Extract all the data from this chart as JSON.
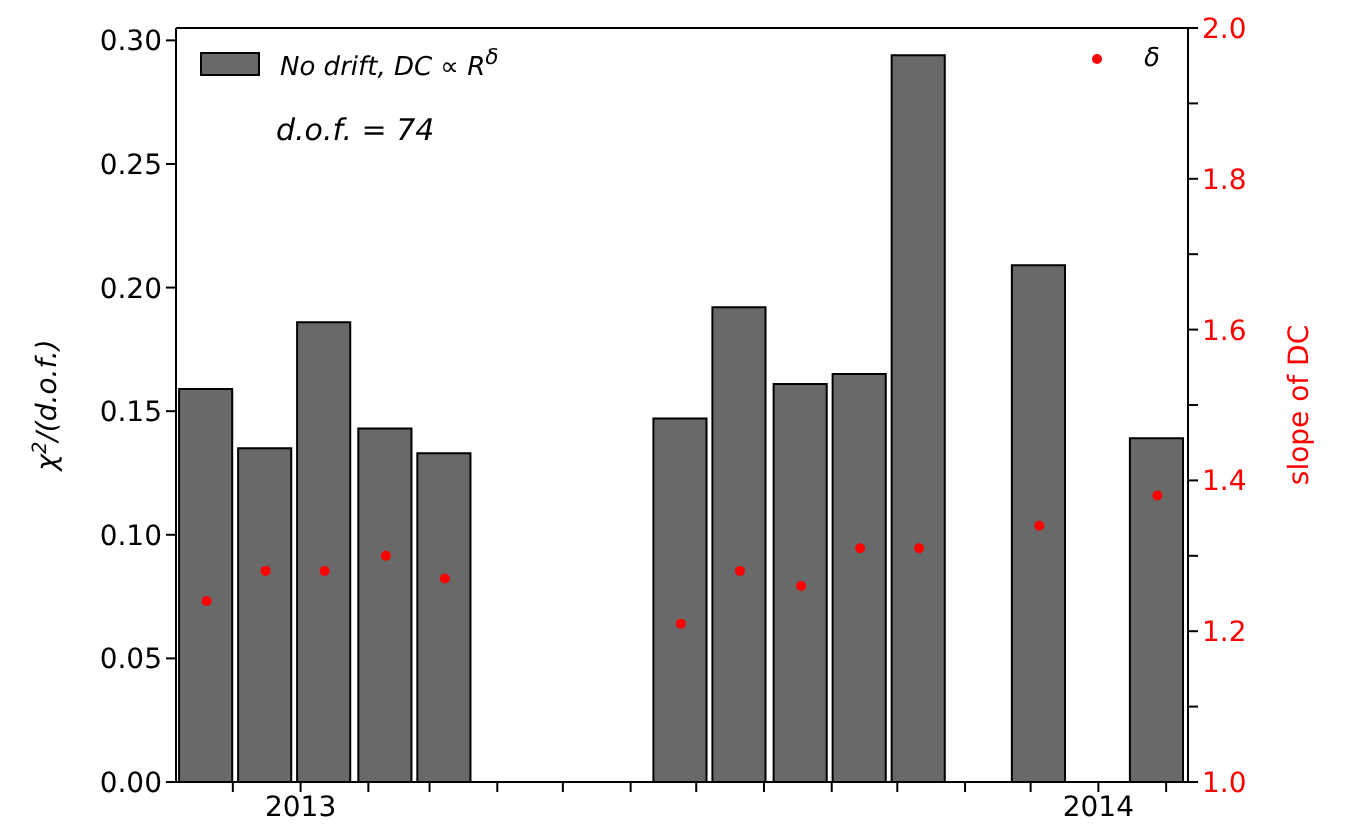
{
  "chart_data": {
    "type": "bar",
    "x": [
      "2012-11-19",
      "2012-12-16",
      "2013-01-12",
      "2013-02-09",
      "2013-03-08",
      "2013-06-24",
      "2013-07-21",
      "2013-08-18",
      "2013-09-14",
      "2013-10-11",
      "2013-12-05",
      "2014-01-28"
    ],
    "series": [
      {
        "name": "No drift, DC ∝ R$^{δ}$",
        "color": "#696969",
        "values": [
          0.159,
          0.135,
          0.186,
          0.143,
          0.133,
          0.147,
          0.192,
          0.161,
          0.165,
          0.294,
          0.209,
          0.139
        ]
      },
      {
        "name": "δ",
        "type": "scatter",
        "color": "#ff0000",
        "axis": "y2",
        "marker": "circle",
        "values": [
          1.24,
          1.28,
          1.28,
          1.3,
          1.27,
          1.21,
          1.28,
          1.26,
          1.31,
          1.31,
          1.34,
          1.38
        ]
      }
    ],
    "xlim": [
      "2012-11-05",
      "2014-02-11"
    ],
    "xticks": [
      {
        "value": "2012-12",
        "label": null
      },
      {
        "value": "2013",
        "label": "2013"
      },
      {
        "value": "2013-02",
        "label": null
      },
      {
        "value": "2013-03",
        "label": null
      },
      {
        "value": "2013-04",
        "label": null
      },
      {
        "value": "2013-05",
        "label": null
      },
      {
        "value": "2013-06",
        "label": null
      },
      {
        "value": "2013-07",
        "label": null
      },
      {
        "value": "2013-08",
        "label": null
      },
      {
        "value": "2013-09",
        "label": null
      },
      {
        "value": "2013-10",
        "label": null
      },
      {
        "value": "2013-11",
        "label": null
      },
      {
        "value": "2013-12",
        "label": null
      },
      {
        "value": "2014",
        "label": "2014"
      },
      {
        "value": "2014-02",
        "label": null
      }
    ],
    "ylim": [
      0,
      0.305
    ],
    "yticks": [
      {
        "value": 0,
        "label": "0.00"
      },
      {
        "value": 0.05,
        "label": "0.05"
      },
      {
        "value": 0.1,
        "label": "0.10"
      },
      {
        "value": 0.15,
        "label": "0.15"
      },
      {
        "value": 0.2,
        "label": "0.20"
      },
      {
        "value": 0.25,
        "label": "0.25"
      },
      {
        "value": 0.3,
        "label": "0.30"
      }
    ],
    "y2lim": [
      1.0,
      2.0
    ],
    "y2ticks": [
      {
        "value": 1.0,
        "label": "1.0"
      },
      {
        "value": 1.1,
        "label": null
      },
      {
        "value": 1.2,
        "label": "1.2"
      },
      {
        "value": 1.3,
        "label": null
      },
      {
        "value": 1.4,
        "label": "1.4"
      },
      {
        "value": 1.5,
        "label": null
      },
      {
        "value": 1.6,
        "label": "1.6"
      },
      {
        "value": 1.7,
        "label": null
      },
      {
        "value": 1.8,
        "label": "1.8"
      },
      {
        "value": 1.9,
        "label": null
      },
      {
        "value": 2.0,
        "label": "2.0"
      }
    ],
    "ylabel": "χ$^{2}$/(d.o.f.)",
    "y2label": "slope of DC",
    "annotations": [
      "d.o.f. = 74"
    ],
    "legend": "top",
    "grid": false
  }
}
